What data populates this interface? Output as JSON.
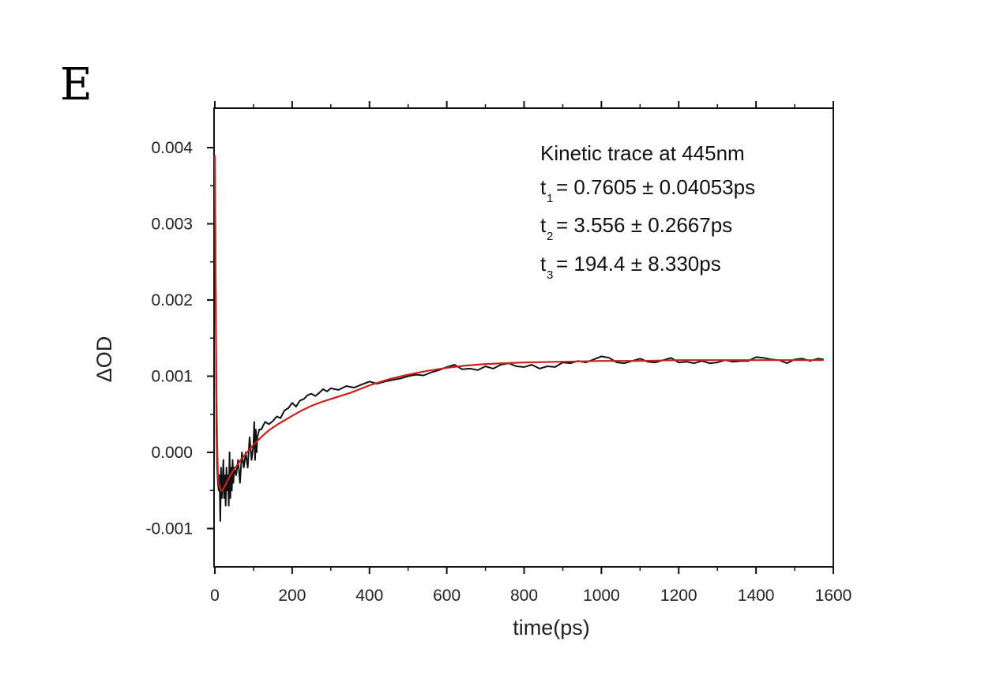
{
  "panel_label": "E",
  "chart_data": {
    "type": "line",
    "title": "",
    "xlabel": "time(ps)",
    "ylabel": "ΔOD",
    "xlim": [
      -5,
      1600
    ],
    "ylim": [
      -0.0015,
      0.0046
    ],
    "xticks": [
      0,
      200,
      400,
      600,
      800,
      1000,
      1200,
      1400,
      1600
    ],
    "xtick_labels": [
      "0",
      "200",
      "400",
      "600",
      "800",
      "1000",
      "1200",
      "1400",
      "1600"
    ],
    "yticks": [
      -0.001,
      0.0,
      0.001,
      0.002,
      0.003,
      0.004
    ],
    "ytick_labels": [
      "-0.001",
      "0.000",
      "0.001",
      "0.002",
      "0.003",
      "0.004"
    ],
    "grid": false,
    "series": [
      {
        "name": "Kinetic trace",
        "color": "#111111",
        "x": [
          0,
          2,
          4,
          6,
          8,
          10,
          12,
          14,
          16,
          18,
          20,
          22,
          24,
          26,
          28,
          30,
          32,
          34,
          36,
          38,
          40,
          42,
          44,
          46,
          48,
          50,
          55,
          60,
          65,
          70,
          75,
          80,
          85,
          90,
          95,
          100,
          102,
          104,
          106,
          108,
          110,
          115,
          120,
          130,
          140,
          150,
          160,
          170,
          180,
          190,
          200,
          210,
          220,
          230,
          240,
          250,
          260,
          270,
          280,
          290,
          300,
          320,
          340,
          360,
          380,
          400,
          420,
          440,
          460,
          480,
          500,
          520,
          540,
          560,
          580,
          600,
          620,
          640,
          660,
          680,
          700,
          720,
          740,
          760,
          780,
          800,
          820,
          840,
          860,
          880,
          900,
          920,
          940,
          960,
          980,
          1000,
          1020,
          1040,
          1060,
          1080,
          1100,
          1120,
          1140,
          1160,
          1180,
          1200,
          1220,
          1240,
          1260,
          1280,
          1300,
          1320,
          1340,
          1360,
          1380,
          1400,
          1420,
          1440,
          1460,
          1480,
          1500,
          1520,
          1540,
          1560,
          1575
        ],
        "y": [
          0.0039,
          0.0024,
          0.0003,
          -0.0002,
          -0.0004,
          -0.0005,
          -0.0003,
          -0.0009,
          -0.0002,
          -0.0006,
          -0.0004,
          -0.0001,
          -0.0006,
          -0.0003,
          -0.0007,
          -0.0002,
          -0.0005,
          -0.0003,
          -0.0007,
          0.0,
          -0.0006,
          -0.0002,
          -0.0005,
          -0.0001,
          -0.0004,
          -0.0002,
          -0.0003,
          -0.0001,
          -0.0004,
          0.0,
          -0.0002,
          0.0,
          -0.0002,
          0.0002,
          -0.0001,
          0.0001,
          0.0004,
          -0.0001,
          0.0003,
          0.0,
          0.0002,
          0.0003,
          0.0003,
          0.0004,
          0.00037,
          0.00041,
          0.00047,
          0.00045,
          0.00055,
          0.00058,
          0.00065,
          0.0006,
          0.00068,
          0.0007,
          0.00075,
          0.00077,
          0.00074,
          0.00078,
          0.00083,
          0.0008,
          0.00084,
          0.00082,
          0.00087,
          0.00085,
          0.00089,
          0.00093,
          0.0009,
          0.00093,
          0.00095,
          0.00097,
          0.001,
          0.00102,
          0.00101,
          0.00105,
          0.00108,
          0.00112,
          0.00115,
          0.00109,
          0.0011,
          0.00108,
          0.00113,
          0.0011,
          0.00115,
          0.00117,
          0.00113,
          0.00112,
          0.00115,
          0.0011,
          0.00113,
          0.00112,
          0.00118,
          0.00117,
          0.0012,
          0.00118,
          0.00122,
          0.00126,
          0.00124,
          0.00118,
          0.00117,
          0.0012,
          0.00123,
          0.00119,
          0.00118,
          0.00121,
          0.00124,
          0.00118,
          0.00119,
          0.00117,
          0.0012,
          0.00117,
          0.00118,
          0.00121,
          0.00119,
          0.0012,
          0.0012,
          0.00125,
          0.00124,
          0.00122,
          0.00121,
          0.00117,
          0.00122,
          0.00123,
          0.0012,
          0.00123,
          0.00122
        ]
      },
      {
        "name": "Fit",
        "color": "#cc1f1f",
        "x": [
          0,
          2,
          4,
          6,
          8,
          10,
          12,
          14,
          16,
          18,
          20,
          25,
          30,
          40,
          50,
          60,
          70,
          80,
          90,
          100,
          120,
          140,
          160,
          180,
          200,
          225,
          250,
          275,
          300,
          350,
          400,
          450,
          500,
          550,
          600,
          650,
          700,
          750,
          800,
          900,
          1000,
          1100,
          1200,
          1300,
          1400,
          1500,
          1575
        ],
        "y": [
          0.0039,
          0.0022,
          0.0008,
          0.0001,
          -0.0003,
          -0.0004,
          -0.00045,
          -0.00048,
          -0.0005,
          -0.0005,
          -0.00049,
          -0.00045,
          -0.0004,
          -0.0003,
          -0.00022,
          -0.00015,
          -8e-05,
          -2e-05,
          4e-05,
          0.0001,
          0.0002,
          0.00029,
          0.00036,
          0.00042,
          0.00048,
          0.00055,
          0.00061,
          0.00066,
          0.0007,
          0.00078,
          0.00088,
          0.00096,
          0.00102,
          0.00107,
          0.00111,
          0.00114,
          0.00116,
          0.00117,
          0.00118,
          0.00119,
          0.0012,
          0.0012,
          0.00121,
          0.00121,
          0.00121,
          0.00121,
          0.00121
        ]
      }
    ],
    "annotations": [
      {
        "text": "Kinetic trace at 445nm"
      },
      {
        "symbol": "t",
        "sub": "1",
        "text": "= 0.7605 ± 0.04053ps"
      },
      {
        "symbol": "t",
        "sub": "2",
        "text": "= 3.556 ± 0.2667ps"
      },
      {
        "symbol": "t",
        "sub": "3",
        "text": "= 194.4 ± 8.330ps"
      }
    ]
  }
}
